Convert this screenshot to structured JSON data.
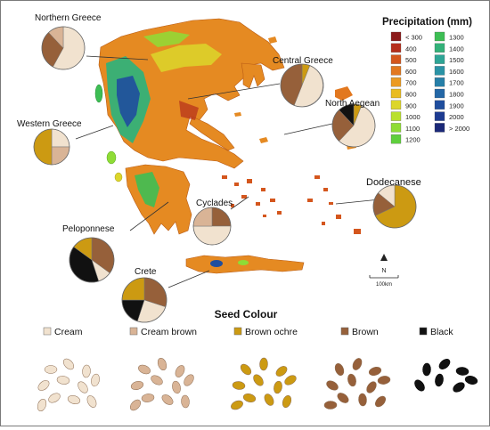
{
  "legend": {
    "title": "Precipitation (mm)",
    "classes": [
      {
        "label": "< 300",
        "color": "#8b1a1a"
      },
      {
        "label": "400",
        "color": "#b52d1b"
      },
      {
        "label": "500",
        "color": "#d4561d"
      },
      {
        "label": "600",
        "color": "#e2781f"
      },
      {
        "label": "700",
        "color": "#eb9a22"
      },
      {
        "label": "800",
        "color": "#e9bc22"
      },
      {
        "label": "900",
        "color": "#dcd62a"
      },
      {
        "label": "1000",
        "color": "#b9e02e"
      },
      {
        "label": "1100",
        "color": "#8fdc36"
      },
      {
        "label": "1200",
        "color": "#5fcf3d"
      },
      {
        "label": "1300",
        "color": "#3dbe54"
      },
      {
        "label": "1400",
        "color": "#33b179"
      },
      {
        "label": "1500",
        "color": "#2ea596"
      },
      {
        "label": "1600",
        "color": "#2a93a6"
      },
      {
        "label": "1700",
        "color": "#267fa8"
      },
      {
        "label": "1800",
        "color": "#2367a6"
      },
      {
        "label": "1900",
        "color": "#1f4e9e"
      },
      {
        "label": "2000",
        "color": "#1d3b91"
      },
      {
        "label": "> 2000",
        "color": "#1b2878"
      }
    ]
  },
  "map": {
    "scale_label": "100km",
    "north_label": "N",
    "land_color": "#e58a22"
  },
  "seed_colours": {
    "title": "Seed Colour",
    "items": [
      {
        "label": "Cream",
        "color": "#f1e2cf"
      },
      {
        "label": "Cream brown",
        "color": "#d9b496"
      },
      {
        "label": "Brown ochre",
        "color": "#cc9a12"
      },
      {
        "label": "Brown",
        "color": "#96603a"
      },
      {
        "label": "Black",
        "color": "#111111"
      }
    ]
  },
  "regions": [
    {
      "name": "Northern Greece",
      "shares": {
        "Cream": 0.58,
        "Brown": 0.3,
        "Cream brown": 0.12
      }
    },
    {
      "name": "Central Greece",
      "shares": {
        "Brown ochre": 0.06,
        "Cream": 0.5,
        "Brown": 0.44
      }
    },
    {
      "name": "North Aegean",
      "shares": {
        "Brown ochre": 0.06,
        "Cream": 0.56,
        "Brown": 0.26,
        "Black": 0.12
      }
    },
    {
      "name": "Western Greece",
      "shares": {
        "Cream": 0.25,
        "Cream brown": 0.25,
        "Brown ochre": 0.5
      }
    },
    {
      "name": "Dodecanese",
      "shares": {
        "Brown ochre": 0.68,
        "Brown": 0.18,
        "Cream": 0.14
      }
    },
    {
      "name": "Cyclades",
      "shares": {
        "Brown": 0.25,
        "Cream": 0.5,
        "Cream brown": 0.25
      }
    },
    {
      "name": "Peloponnese",
      "shares": {
        "Brown": 0.35,
        "Cream": 0.1,
        "Black": 0.4,
        "Brown ochre": 0.15
      }
    },
    {
      "name": "Crete",
      "shares": {
        "Brown": 0.3,
        "Cream": 0.25,
        "Black": 0.2,
        "Brown ochre": 0.25
      }
    }
  ]
}
